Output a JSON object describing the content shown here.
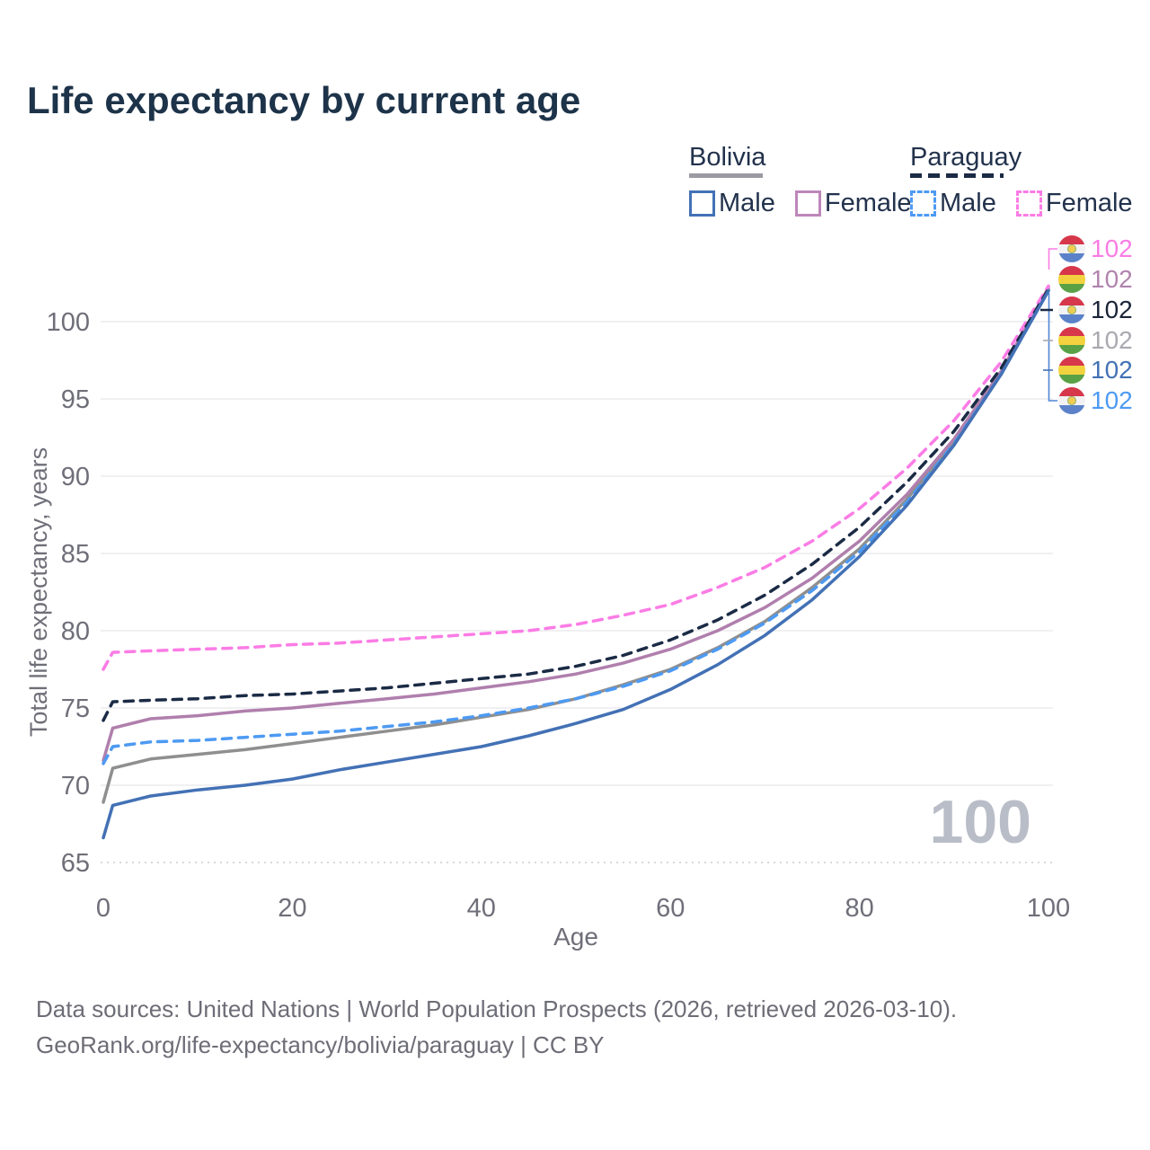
{
  "title": "Life expectancy by current age",
  "legend": {
    "groups": [
      {
        "country": "Bolivia",
        "line_style": "solid",
        "underline_color": "#9a9aa2",
        "items": [
          {
            "label": "Male",
            "color": "#4371b5",
            "dashed": false
          },
          {
            "label": "Female",
            "color": "#bd87ba",
            "dashed": false
          }
        ]
      },
      {
        "country": "Paraguay",
        "line_style": "dashed",
        "underline_color": "#1b2b45",
        "items": [
          {
            "label": "Male",
            "color": "#4d9af3",
            "dashed": true
          },
          {
            "label": "Female",
            "color": "#fb7ce5",
            "dashed": true
          }
        ]
      }
    ]
  },
  "chart_data": {
    "type": "line",
    "title": "Life expectancy by current age",
    "xlabel": "Age",
    "ylabel": "Total life expectancy, years",
    "xlim": [
      0,
      100
    ],
    "ylim": [
      65,
      102.5
    ],
    "x_ticks": [
      0,
      20,
      40,
      60,
      80,
      100
    ],
    "y_ticks": [
      65,
      70,
      75,
      80,
      85,
      90,
      95,
      100
    ],
    "grid": "horizontal",
    "legend_position": "top-right",
    "hover_age_watermark": "100",
    "x": [
      0,
      1,
      5,
      10,
      15,
      20,
      25,
      30,
      35,
      40,
      45,
      50,
      55,
      60,
      65,
      70,
      75,
      80,
      85,
      90,
      95,
      100
    ],
    "series": [
      {
        "name": "Bolivia",
        "sex": "total",
        "color": "#8f8f8f",
        "dash": false,
        "values": [
          68.9,
          71.1,
          71.7,
          72.0,
          72.3,
          72.7,
          73.1,
          73.5,
          73.9,
          74.4,
          74.9,
          75.6,
          76.5,
          77.5,
          78.9,
          80.6,
          82.8,
          85.3,
          88.5,
          92.2,
          96.7,
          102.1
        ]
      },
      {
        "name": "Bolivia Female",
        "sex": "female",
        "color": "#b07fad",
        "dash": false,
        "values": [
          71.6,
          73.7,
          74.3,
          74.5,
          74.8,
          75.0,
          75.3,
          75.6,
          75.9,
          76.3,
          76.7,
          77.2,
          77.9,
          78.8,
          80.0,
          81.5,
          83.4,
          85.8,
          88.8,
          92.4,
          96.8,
          102.2
        ]
      },
      {
        "name": "Paraguay Female",
        "sex": "female",
        "color": "#fb7ce5",
        "dash": true,
        "values": [
          77.5,
          78.6,
          78.7,
          78.8,
          78.9,
          79.1,
          79.2,
          79.4,
          79.6,
          79.8,
          80.0,
          80.4,
          81.0,
          81.7,
          82.8,
          84.1,
          85.8,
          87.9,
          90.5,
          93.6,
          97.4,
          102.3
        ]
      },
      {
        "name": "Paraguay",
        "sex": "total",
        "color": "#1b2b45",
        "dash": true,
        "values": [
          74.2,
          75.4,
          75.5,
          75.6,
          75.8,
          75.9,
          76.1,
          76.3,
          76.6,
          76.9,
          77.2,
          77.7,
          78.4,
          79.4,
          80.7,
          82.3,
          84.3,
          86.7,
          89.6,
          92.9,
          97.0,
          102.1
        ]
      },
      {
        "name": "Paraguay Male",
        "sex": "male",
        "color": "#4d9af3",
        "dash": true,
        "values": [
          71.4,
          72.5,
          72.8,
          72.9,
          73.1,
          73.3,
          73.5,
          73.8,
          74.1,
          74.5,
          75.0,
          75.6,
          76.4,
          77.4,
          78.8,
          80.5,
          82.6,
          85.1,
          88.3,
          92.1,
          96.6,
          102.0
        ]
      },
      {
        "name": "Bolivia Male",
        "sex": "male",
        "color": "#4371b5",
        "dash": false,
        "values": [
          66.6,
          68.7,
          69.3,
          69.7,
          70.0,
          70.4,
          71.0,
          71.5,
          72.0,
          72.5,
          73.2,
          74.0,
          74.9,
          76.2,
          77.8,
          79.7,
          82.0,
          84.8,
          88.1,
          92.0,
          96.6,
          102.0
        ]
      }
    ],
    "end_labels": [
      {
        "series": "Paraguay Female",
        "flag": "paraguay",
        "value": "102",
        "color": "#fb7ce5"
      },
      {
        "series": "Bolivia Female",
        "flag": "bolivia",
        "value": "102",
        "color": "#b184ae"
      },
      {
        "series": "Paraguay",
        "flag": "paraguay",
        "value": "102",
        "color": "#1b2438"
      },
      {
        "series": "Bolivia",
        "flag": "bolivia",
        "value": "102",
        "color": "#a9a9b0"
      },
      {
        "series": "Bolivia Male",
        "flag": "bolivia",
        "value": "102",
        "color": "#4371b5"
      },
      {
        "series": "Paraguay Male",
        "flag": "paraguay",
        "value": "102",
        "color": "#4d9af3"
      }
    ],
    "flag_colors": {
      "bolivia": [
        "#d6374b",
        "#f2d23e",
        "#5aa146"
      ],
      "paraguay": [
        "#d6374b",
        "#f2f2f4",
        "#5b82c9"
      ]
    }
  },
  "colors": {
    "title": "#1d3349",
    "tick_text": "#6f6f79",
    "gridline": "#ebebee",
    "gridline_dotted": "#d8d8dd",
    "watermark": "#b9bdc7",
    "footer_text": "#6d6d77"
  },
  "footer": {
    "line1": "Data sources: United Nations | World Population Prospects (2026, retrieved 2026-03-10).",
    "line2": "GeoRank.org/life-expectancy/bolivia/paraguay | CC BY"
  }
}
